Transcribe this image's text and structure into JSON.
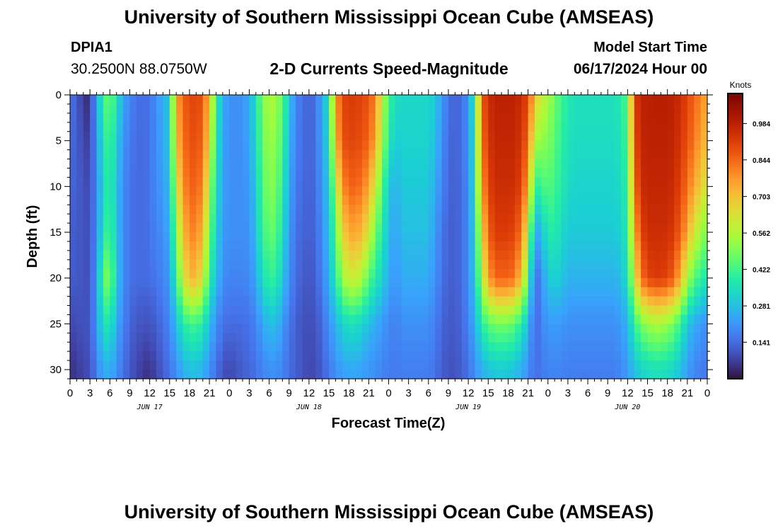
{
  "header": {
    "title": "University of Southern Mississippi Ocean Cube (AMSEAS)",
    "station": "DPIA1",
    "coords": "30.2500N  88.0750W",
    "subtitle": "2-D Currents Speed-Magnitude",
    "model_start_label": "Model Start Time",
    "model_start_date": "06/17/2024 Hour 00"
  },
  "footer": {
    "title": "University of Southern Mississippi Ocean Cube (AMSEAS)"
  },
  "chart_data": {
    "type": "heatmap",
    "xlabel": "Forecast Time(Z)",
    "ylabel": "Depth (ft)",
    "x_tick_labels": [
      "0",
      "3",
      "6",
      "9",
      "12",
      "15",
      "18",
      "21",
      "0",
      "3",
      "6",
      "9",
      "12",
      "15",
      "18",
      "21",
      "0",
      "3",
      "6",
      "9",
      "12",
      "15",
      "18",
      "21",
      "0",
      "3",
      "6",
      "9",
      "12",
      "15",
      "18",
      "21",
      "0"
    ],
    "day_labels": [
      {
        "label": "JUN 17",
        "hour": 12
      },
      {
        "label": "JUN 18",
        "hour": 36
      },
      {
        "label": "JUN 19",
        "hour": 60
      },
      {
        "label": "JUN 20",
        "hour": 84
      }
    ],
    "xlim": [
      0,
      96
    ],
    "ylim": [
      0,
      31
    ],
    "y_ticks": [
      0,
      5,
      10,
      15,
      20,
      25,
      30
    ],
    "y_inverted": true,
    "colorbar": {
      "unit": "Knots",
      "range": [
        0,
        1.1
      ],
      "tick_values": [
        0.141,
        0.281,
        0.422,
        0.562,
        0.703,
        0.844,
        0.984
      ],
      "tick_labels": [
        "0.141",
        "0.281",
        "0.422",
        "0.562",
        "0.703",
        "0.844",
        "0.984"
      ],
      "colormap": "turbo"
    },
    "field": {
      "hours": [
        0,
        1,
        2,
        3,
        4,
        5,
        6,
        7,
        8,
        9,
        10,
        11,
        12,
        13,
        14,
        15,
        16,
        17,
        18,
        19,
        20,
        21,
        22,
        23,
        24,
        25,
        26,
        27,
        28,
        29,
        30,
        31,
        32,
        33,
        34,
        35,
        36,
        37,
        38,
        39,
        40,
        41,
        42,
        43,
        44,
        45,
        46,
        47,
        48,
        49,
        50,
        51,
        52,
        53,
        54,
        55,
        56,
        57,
        58,
        59,
        60,
        61,
        62,
        63,
        64,
        65,
        66,
        67,
        68,
        69,
        70,
        71,
        72,
        73,
        74,
        75,
        76,
        77,
        78,
        79,
        80,
        81,
        82,
        83,
        84,
        85,
        86,
        87,
        88,
        89,
        90,
        91,
        92,
        93,
        94,
        95,
        96
      ],
      "depths": [
        0,
        5,
        10,
        15,
        20,
        25,
        30
      ],
      "speed_knots": [
        [
          0.15,
          0.12,
          0.05,
          0.04,
          0.25,
          0.4,
          0.5,
          0.35,
          0.25,
          0.18,
          0.15,
          0.14,
          0.15,
          0.2,
          0.25,
          0.3,
          0.75,
          0.85,
          0.9,
          0.9,
          0.88,
          0.7,
          0.4,
          0.25,
          0.2,
          0.2,
          0.2,
          0.25,
          0.35,
          0.5,
          0.55,
          0.55,
          0.45,
          0.3,
          0.18,
          0.15,
          0.12,
          0.15,
          0.25,
          0.35,
          0.75,
          0.9,
          0.92,
          0.92,
          0.9,
          0.88,
          0.8,
          0.6,
          0.42,
          0.35,
          0.33,
          0.33,
          0.33,
          0.33,
          0.33,
          0.3,
          0.22,
          0.15,
          0.12,
          0.15,
          0.2,
          0.4,
          0.85,
          0.95,
          0.98,
          0.98,
          0.98,
          0.98,
          0.95,
          0.9,
          0.7,
          0.6,
          0.55,
          0.48,
          0.42,
          0.38,
          0.35,
          0.35,
          0.35,
          0.35,
          0.35,
          0.35,
          0.35,
          0.38,
          0.45,
          0.9,
          0.98,
          0.98,
          0.99,
          0.99,
          0.99,
          0.98,
          0.95,
          0.9,
          0.85,
          0.8,
          0.75
        ],
        [
          0.14,
          0.12,
          0.08,
          0.06,
          0.22,
          0.35,
          0.45,
          0.3,
          0.22,
          0.16,
          0.14,
          0.14,
          0.15,
          0.2,
          0.24,
          0.3,
          0.7,
          0.82,
          0.88,
          0.88,
          0.85,
          0.65,
          0.38,
          0.24,
          0.2,
          0.2,
          0.2,
          0.24,
          0.33,
          0.48,
          0.52,
          0.52,
          0.42,
          0.28,
          0.17,
          0.15,
          0.12,
          0.15,
          0.24,
          0.33,
          0.7,
          0.88,
          0.9,
          0.9,
          0.88,
          0.85,
          0.75,
          0.55,
          0.38,
          0.3,
          0.32,
          0.32,
          0.32,
          0.32,
          0.32,
          0.28,
          0.2,
          0.14,
          0.12,
          0.15,
          0.2,
          0.38,
          0.82,
          0.93,
          0.97,
          0.97,
          0.97,
          0.97,
          0.93,
          0.85,
          0.55,
          0.52,
          0.5,
          0.45,
          0.4,
          0.36,
          0.34,
          0.34,
          0.34,
          0.34,
          0.34,
          0.34,
          0.34,
          0.36,
          0.43,
          0.88,
          0.97,
          0.98,
          0.98,
          0.98,
          0.98,
          0.97,
          0.93,
          0.88,
          0.82,
          0.76,
          0.7
        ],
        [
          0.13,
          0.12,
          0.1,
          0.08,
          0.2,
          0.32,
          0.42,
          0.28,
          0.2,
          0.15,
          0.14,
          0.14,
          0.15,
          0.2,
          0.22,
          0.28,
          0.6,
          0.78,
          0.85,
          0.85,
          0.8,
          0.55,
          0.35,
          0.23,
          0.2,
          0.2,
          0.2,
          0.22,
          0.3,
          0.45,
          0.5,
          0.5,
          0.38,
          0.25,
          0.16,
          0.14,
          0.12,
          0.14,
          0.22,
          0.3,
          0.55,
          0.78,
          0.85,
          0.85,
          0.82,
          0.75,
          0.6,
          0.45,
          0.3,
          0.25,
          0.3,
          0.3,
          0.3,
          0.3,
          0.3,
          0.25,
          0.18,
          0.13,
          0.12,
          0.14,
          0.2,
          0.35,
          0.75,
          0.9,
          0.95,
          0.95,
          0.95,
          0.95,
          0.9,
          0.75,
          0.38,
          0.42,
          0.45,
          0.42,
          0.38,
          0.34,
          0.32,
          0.32,
          0.32,
          0.32,
          0.32,
          0.32,
          0.32,
          0.34,
          0.4,
          0.82,
          0.95,
          0.97,
          0.97,
          0.97,
          0.97,
          0.95,
          0.9,
          0.83,
          0.75,
          0.68,
          0.6
        ],
        [
          0.12,
          0.11,
          0.1,
          0.09,
          0.2,
          0.35,
          0.45,
          0.28,
          0.2,
          0.15,
          0.14,
          0.14,
          0.15,
          0.18,
          0.2,
          0.25,
          0.5,
          0.7,
          0.8,
          0.8,
          0.72,
          0.48,
          0.32,
          0.22,
          0.2,
          0.2,
          0.2,
          0.2,
          0.28,
          0.42,
          0.46,
          0.46,
          0.35,
          0.22,
          0.15,
          0.13,
          0.12,
          0.13,
          0.2,
          0.28,
          0.45,
          0.65,
          0.75,
          0.75,
          0.72,
          0.62,
          0.48,
          0.38,
          0.28,
          0.22,
          0.28,
          0.28,
          0.28,
          0.28,
          0.28,
          0.22,
          0.16,
          0.12,
          0.12,
          0.14,
          0.2,
          0.32,
          0.65,
          0.85,
          0.92,
          0.92,
          0.92,
          0.9,
          0.82,
          0.6,
          0.22,
          0.28,
          0.38,
          0.38,
          0.34,
          0.3,
          0.3,
          0.3,
          0.3,
          0.3,
          0.3,
          0.3,
          0.3,
          0.32,
          0.38,
          0.72,
          0.9,
          0.95,
          0.95,
          0.95,
          0.95,
          0.92,
          0.85,
          0.75,
          0.62,
          0.55,
          0.48
        ],
        [
          0.12,
          0.11,
          0.1,
          0.09,
          0.22,
          0.45,
          0.52,
          0.3,
          0.2,
          0.15,
          0.14,
          0.14,
          0.14,
          0.16,
          0.18,
          0.22,
          0.4,
          0.6,
          0.72,
          0.72,
          0.62,
          0.4,
          0.28,
          0.2,
          0.18,
          0.18,
          0.18,
          0.19,
          0.24,
          0.35,
          0.4,
          0.4,
          0.3,
          0.2,
          0.14,
          0.12,
          0.1,
          0.12,
          0.18,
          0.25,
          0.38,
          0.52,
          0.6,
          0.6,
          0.55,
          0.45,
          0.38,
          0.32,
          0.25,
          0.2,
          0.25,
          0.25,
          0.25,
          0.25,
          0.25,
          0.2,
          0.15,
          0.12,
          0.12,
          0.14,
          0.2,
          0.3,
          0.55,
          0.75,
          0.85,
          0.85,
          0.85,
          0.82,
          0.7,
          0.45,
          0.12,
          0.2,
          0.3,
          0.32,
          0.3,
          0.26,
          0.26,
          0.26,
          0.26,
          0.26,
          0.26,
          0.26,
          0.26,
          0.28,
          0.35,
          0.6,
          0.82,
          0.9,
          0.92,
          0.92,
          0.9,
          0.85,
          0.72,
          0.55,
          0.45,
          0.4,
          0.36
        ],
        [
          0.08,
          0.09,
          0.1,
          0.1,
          0.22,
          0.35,
          0.38,
          0.25,
          0.18,
          0.13,
          0.11,
          0.1,
          0.1,
          0.12,
          0.15,
          0.18,
          0.28,
          0.38,
          0.42,
          0.42,
          0.38,
          0.28,
          0.2,
          0.15,
          0.14,
          0.14,
          0.14,
          0.15,
          0.18,
          0.24,
          0.28,
          0.28,
          0.22,
          0.16,
          0.12,
          0.1,
          0.09,
          0.1,
          0.14,
          0.2,
          0.26,
          0.32,
          0.35,
          0.35,
          0.32,
          0.28,
          0.25,
          0.22,
          0.19,
          0.17,
          0.2,
          0.2,
          0.2,
          0.2,
          0.2,
          0.17,
          0.13,
          0.11,
          0.11,
          0.13,
          0.18,
          0.25,
          0.38,
          0.45,
          0.48,
          0.48,
          0.48,
          0.45,
          0.38,
          0.28,
          0.12,
          0.18,
          0.22,
          0.22,
          0.22,
          0.2,
          0.2,
          0.2,
          0.2,
          0.2,
          0.2,
          0.2,
          0.2,
          0.22,
          0.26,
          0.4,
          0.48,
          0.52,
          0.55,
          0.55,
          0.52,
          0.48,
          0.4,
          0.3,
          0.25,
          0.22,
          0.2
        ],
        [
          0.05,
          0.06,
          0.08,
          0.09,
          0.18,
          0.24,
          0.26,
          0.2,
          0.15,
          0.11,
          0.08,
          0.06,
          0.05,
          0.08,
          0.12,
          0.15,
          0.2,
          0.25,
          0.28,
          0.28,
          0.26,
          0.2,
          0.15,
          0.1,
          0.08,
          0.1,
          0.12,
          0.13,
          0.15,
          0.18,
          0.2,
          0.2,
          0.18,
          0.14,
          0.12,
          0.1,
          0.08,
          0.09,
          0.12,
          0.16,
          0.2,
          0.23,
          0.24,
          0.24,
          0.23,
          0.21,
          0.2,
          0.18,
          0.17,
          0.16,
          0.17,
          0.17,
          0.17,
          0.17,
          0.17,
          0.15,
          0.12,
          0.1,
          0.1,
          0.12,
          0.15,
          0.2,
          0.25,
          0.28,
          0.3,
          0.3,
          0.3,
          0.28,
          0.25,
          0.2,
          0.14,
          0.16,
          0.18,
          0.18,
          0.18,
          0.17,
          0.17,
          0.17,
          0.17,
          0.17,
          0.17,
          0.17,
          0.17,
          0.19,
          0.22,
          0.28,
          0.32,
          0.34,
          0.35,
          0.35,
          0.34,
          0.32,
          0.28,
          0.22,
          0.19,
          0.17,
          0.16
        ]
      ]
    }
  }
}
